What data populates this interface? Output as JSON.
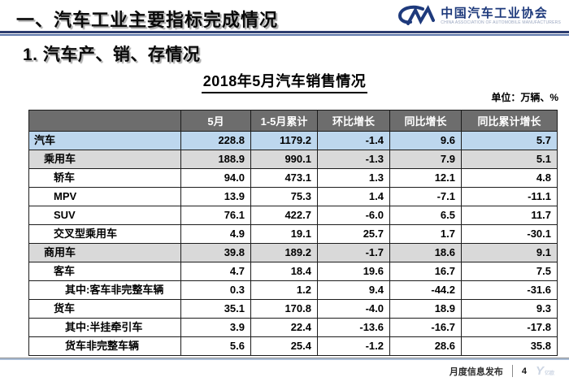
{
  "header": {
    "title": "一、汽车工业主要指标完成情况"
  },
  "logo": {
    "mark": "CM",
    "name_cn": "中国汽车工业协会",
    "name_en": "CHINA ASSOCIATION OF AUTOMOBILE MANUFACTURERS"
  },
  "section": {
    "title": "1. 汽车产、销、存情况"
  },
  "table": {
    "title": "2018年5月汽车销售情况",
    "unit_label": "单位：万辆、%",
    "columns": [
      "",
      "5月",
      "1-5月累计",
      "环比增长",
      "同比增长",
      "同比累计增长"
    ],
    "rows": [
      {
        "label": "汽车",
        "indent": 0,
        "style": "blue",
        "values": [
          "228.8",
          "1179.2",
          "-1.4",
          "9.6",
          "5.7"
        ]
      },
      {
        "label": "乘用车",
        "indent": 1,
        "style": "gray",
        "values": [
          "188.9",
          "990.1",
          "-1.3",
          "7.9",
          "5.1"
        ]
      },
      {
        "label": "轿车",
        "indent": 2,
        "style": "white",
        "values": [
          "94.0",
          "473.1",
          "1.3",
          "12.1",
          "4.8"
        ]
      },
      {
        "label": "MPV",
        "indent": 2,
        "style": "white",
        "values": [
          "13.9",
          "75.3",
          "1.4",
          "-7.1",
          "-11.1"
        ]
      },
      {
        "label": "SUV",
        "indent": 2,
        "style": "white",
        "values": [
          "76.1",
          "422.7",
          "-6.0",
          "6.5",
          "11.7"
        ]
      },
      {
        "label": "交叉型乘用车",
        "indent": 2,
        "style": "white",
        "values": [
          "4.9",
          "19.1",
          "25.7",
          "1.7",
          "-30.1"
        ]
      },
      {
        "label": "商用车",
        "indent": 1,
        "style": "gray",
        "values": [
          "39.8",
          "189.2",
          "-1.7",
          "18.6",
          "9.1"
        ]
      },
      {
        "label": "客车",
        "indent": 2,
        "style": "white",
        "values": [
          "4.7",
          "18.4",
          "19.6",
          "16.7",
          "7.5"
        ]
      },
      {
        "label": "其中:客车非完整车辆",
        "indent": 3,
        "style": "white",
        "values": [
          "0.3",
          "1.2",
          "9.4",
          "-44.2",
          "-31.6"
        ]
      },
      {
        "label": "货车",
        "indent": 2,
        "style": "white",
        "values": [
          "35.1",
          "170.8",
          "-4.0",
          "18.9",
          "9.3"
        ]
      },
      {
        "label": "其中:半挂牵引车",
        "indent": 3,
        "style": "white",
        "values": [
          "3.9",
          "22.4",
          "-13.6",
          "-16.7",
          "-17.8"
        ]
      },
      {
        "label": "货车非完整车辆",
        "indent": 3,
        "style": "white",
        "values": [
          "5.6",
          "25.4",
          "-1.2",
          "28.6",
          "35.8"
        ]
      }
    ]
  },
  "footer": {
    "label": "月度信息发布",
    "page_number": "4",
    "watermark": "Y",
    "watermark_sub": "亿欧"
  },
  "colors": {
    "accent_navy": "#1e3a7c",
    "header_row_bg": "#6d6d6d",
    "header_row_text": "#ffffff",
    "highlight_row_blue": "#bdd7ee",
    "subtotal_row_gray": "#d9d9d9",
    "rule_dark_blue": "#2c3d6f",
    "rule_light_blue": "#5d77aa"
  }
}
